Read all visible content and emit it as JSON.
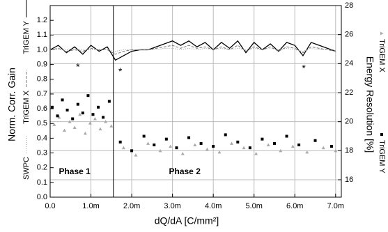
{
  "chart_data": {
    "type": "line",
    "xlabel": "dQ/dA [C/mm²]",
    "ylabel": "Norm. Corr. Gain",
    "y2label": "Energy Resolution [%]",
    "xlim": [
      0,
      7.14
    ],
    "ylim": [
      0,
      1.3
    ],
    "y2lim": [
      14.8,
      28
    ],
    "xticks": [
      {
        "value": 0,
        "label": "0.0"
      },
      {
        "value": 1,
        "label": "1.0m"
      },
      {
        "value": 2,
        "label": "2.0m"
      },
      {
        "value": 3,
        "label": "3.0m"
      },
      {
        "value": 4,
        "label": "4.0m"
      },
      {
        "value": 5,
        "label": "5.0m"
      },
      {
        "value": 6,
        "label": "6.0m"
      },
      {
        "value": 7,
        "label": "7.0m"
      }
    ],
    "yticks": [
      {
        "value": 0,
        "label": "0.0"
      },
      0.1,
      0.2,
      0.3,
      0.4,
      0.5,
      0.6,
      0.7,
      0.8,
      0.9,
      {
        "value": 1,
        "label": "1.0"
      },
      1.1,
      1.2
    ],
    "y2ticks": [
      16,
      18,
      20,
      22,
      24,
      26,
      28
    ],
    "grid": true,
    "vlines": [
      1.55
    ],
    "annotations": [
      {
        "text": "Phase 1",
        "x": 0.6,
        "y": 0.17
      },
      {
        "text": "Phase 2",
        "x": 3.3,
        "y": 0.17
      },
      {
        "text": "*",
        "x": 0.68,
        "y": 0.88
      },
      {
        "text": "*",
        "x": 1.72,
        "y": 0.85
      },
      {
        "text": "*",
        "x": 6.22,
        "y": 0.87
      }
    ],
    "x": [
      0,
      0.2,
      0.4,
      0.6,
      0.8,
      1,
      1.2,
      1.4,
      1.6,
      1.8,
      2,
      2.2,
      2.4,
      2.6,
      2.8,
      3,
      3.2,
      3.4,
      3.6,
      3.8,
      4,
      4.2,
      4.4,
      4.6,
      4.8,
      5,
      5.2,
      5.4,
      5.6,
      5.8,
      6,
      6.2,
      6.4,
      6.6,
      6.8,
      7
    ],
    "series": [
      {
        "name": "TriGEM Y",
        "color": "#000000",
        "style": "solid",
        "values": [
          1.0,
          1.03,
          0.98,
          1.02,
          0.97,
          1.03,
          0.99,
          1.02,
          0.93,
          0.96,
          0.99,
          1.0,
          1.0,
          1.02,
          1.04,
          1.06,
          1.03,
          1.06,
          1.02,
          1.05,
          1.0,
          1.05,
          1.01,
          1.06,
          0.98,
          1.05,
          1.0,
          1.04,
          0.99,
          1.05,
          1.03,
          0.96,
          1.05,
          1.03,
          1.01,
          0.99
        ]
      },
      {
        "name": "TriGEM X",
        "color": "#777777",
        "style": "dashed",
        "values": [
          1.0,
          1.01,
          0.99,
          1.0,
          0.99,
          1.01,
          1.0,
          1.0,
          0.97,
          0.99,
          1.0,
          1.0,
          1.0,
          1.01,
          1.02,
          1.03,
          1.01,
          1.03,
          1.01,
          1.02,
          1.0,
          1.02,
          1.0,
          1.03,
          0.99,
          1.02,
          1.0,
          1.02,
          0.99,
          1.02,
          1.01,
          0.98,
          1.02,
          1.01,
          1.0,
          0.99
        ]
      },
      {
        "name": "SWPC",
        "color": "#999999",
        "style": "dotted",
        "values": [
          1.0,
          1.0,
          1.0,
          1.0,
          1.0,
          1.0,
          1.0,
          1.0,
          0.99,
          1.0,
          1.0,
          1.0,
          1.0,
          1.0,
          1.01,
          1.01,
          1.0,
          1.01,
          1.0,
          1.01,
          1.0,
          1.01,
          1.0,
          1.01,
          1.0,
          1.01,
          1.0,
          1.01,
          1.0,
          1.01,
          1.0,
          0.99,
          1.01,
          1.0,
          1.0,
          1.0
        ]
      },
      {
        "name": "TriGEM X",
        "color": "#aaaaaa",
        "marker": "triangle",
        "axis": "y2",
        "x": [
          0.1,
          0.22,
          0.35,
          0.48,
          0.6,
          0.73,
          0.86,
          0.98,
          1.1,
          1.23,
          1.36,
          1.5,
          1.8,
          2.1,
          2.4,
          2.7,
          2.95,
          3.25,
          3.55,
          3.85,
          4.15,
          4.45,
          4.75,
          5.05,
          5.35,
          5.65,
          5.95,
          6.3,
          6.7,
          7.0
        ],
        "values": [
          19.8,
          20.3,
          19.4,
          20.0,
          19.6,
          20.5,
          19.2,
          19.9,
          20.2,
          19.5,
          20.0,
          19.7,
          18.2,
          17.7,
          18.5,
          18.0,
          18.3,
          17.8,
          18.4,
          18.1,
          17.9,
          18.5,
          18.2,
          17.8,
          18.4,
          18.0,
          18.3,
          17.9,
          18.2,
          18.0
        ]
      },
      {
        "name": "TriGEM Y",
        "color": "#000000",
        "marker": "square",
        "axis": "y2",
        "x": [
          0.05,
          0.18,
          0.3,
          0.42,
          0.55,
          0.68,
          0.8,
          0.93,
          1.05,
          1.18,
          1.3,
          1.45,
          1.72,
          2.0,
          2.3,
          2.55,
          2.85,
          3.1,
          3.4,
          3.7,
          4.0,
          4.3,
          4.6,
          4.9,
          5.2,
          5.5,
          5.8,
          6.1,
          6.5,
          6.9
        ],
        "values": [
          21.0,
          20.4,
          21.5,
          20.8,
          20.2,
          21.2,
          20.6,
          21.8,
          20.5,
          21.0,
          20.3,
          21.4,
          18.6,
          18.0,
          19.0,
          18.4,
          18.8,
          18.2,
          18.9,
          18.5,
          18.3,
          19.1,
          18.6,
          18.2,
          18.8,
          18.5,
          19.0,
          18.4,
          18.7,
          18.3
        ]
      }
    ]
  }
}
